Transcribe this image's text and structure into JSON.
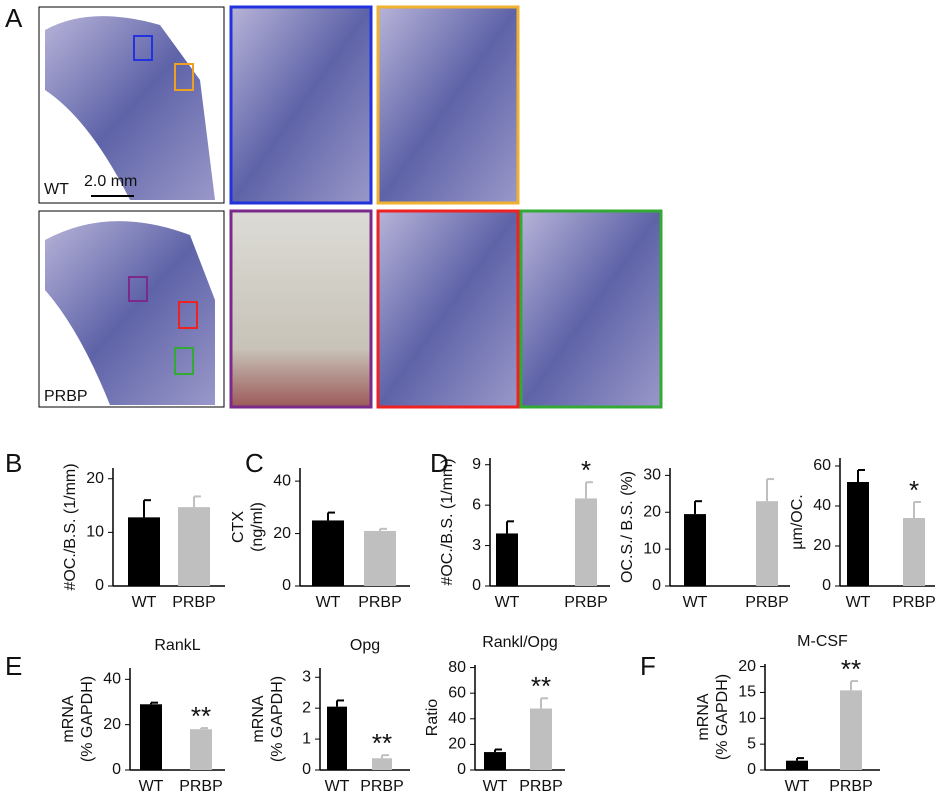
{
  "panel_a": {
    "label": "A",
    "wt_label": "WT",
    "scale_bar": "2.0 mm",
    "prbp_label": "PRBP"
  },
  "chart_data": [
    {
      "type": "bar",
      "panel": "B",
      "ylabel": "#OC./B.S. (1/mm)",
      "categories": [
        "WT",
        "PRBP"
      ],
      "values": [
        12.8,
        14.7
      ],
      "errors": [
        3.2,
        2.0
      ],
      "colors": [
        "#000000",
        "#bfbfbf"
      ],
      "ylim": [
        0,
        22
      ],
      "yticks": [
        0,
        10,
        20
      ]
    },
    {
      "type": "bar",
      "panel": "C",
      "ylabel": [
        "CTX",
        "(ng/ml)"
      ],
      "categories": [
        "WT",
        "PRBP"
      ],
      "values": [
        25,
        21
      ],
      "errors": [
        3,
        0.8
      ],
      "colors": [
        "#000000",
        "#bfbfbf"
      ],
      "ylim": [
        0,
        45
      ],
      "yticks": [
        0,
        20,
        40
      ]
    },
    {
      "type": "bar",
      "panel": "D",
      "ylabel": "#OC./B.S. (1/mm)",
      "categories": [
        "WT",
        "PRBP"
      ],
      "values": [
        3.9,
        6.5
      ],
      "errors": [
        0.9,
        1.2
      ],
      "colors": [
        "#000000",
        "#bfbfbf"
      ],
      "ylim": [
        0,
        9.5
      ],
      "yticks": [
        0,
        3,
        6,
        9
      ],
      "annotations": [
        {
          "index": 1,
          "text": "*"
        }
      ]
    },
    {
      "type": "bar",
      "ylabel": "OC.S./ B.S. (%)",
      "categories": [
        "WT",
        "PRBP"
      ],
      "values": [
        19.5,
        23
      ],
      "errors": [
        3.5,
        6
      ],
      "colors": [
        "#000000",
        "#bfbfbf"
      ],
      "ylim": [
        0,
        32
      ],
      "yticks": [
        0,
        10,
        20,
        30
      ]
    },
    {
      "type": "bar",
      "ylabel": "µm/OC.",
      "categories": [
        "WT",
        "PRBP"
      ],
      "values": [
        52,
        34
      ],
      "errors": [
        6,
        8
      ],
      "colors": [
        "#000000",
        "#bfbfbf"
      ],
      "ylim": [
        0,
        64
      ],
      "yticks": [
        0,
        20,
        40,
        60
      ],
      "annotations": [
        {
          "index": 1,
          "text": "*"
        }
      ]
    },
    {
      "type": "bar",
      "panel": "E",
      "title": "RankL",
      "ylabel": [
        "mRNA",
        "(% GAPDH)"
      ],
      "categories": [
        "WT",
        "PRBP"
      ],
      "values": [
        29,
        18
      ],
      "errors": [
        0.7,
        0.5
      ],
      "colors": [
        "#000000",
        "#bfbfbf"
      ],
      "ylim": [
        0,
        45
      ],
      "yticks": [
        0,
        20,
        40
      ],
      "annotations": [
        {
          "index": 1,
          "text": "**"
        }
      ]
    },
    {
      "type": "bar",
      "title": "Opg",
      "ylabel": [
        "mRNA",
        "(% GAPDH)"
      ],
      "categories": [
        "WT",
        "PRBP"
      ],
      "values": [
        2.05,
        0.38
      ],
      "errors": [
        0.2,
        0.1
      ],
      "colors": [
        "#000000",
        "#bfbfbf"
      ],
      "ylim": [
        0,
        3.3
      ],
      "yticks": [
        0,
        1,
        2,
        3
      ],
      "annotations": [
        {
          "index": 1,
          "text": "**"
        }
      ]
    },
    {
      "type": "bar",
      "title": "Rankl/Opg",
      "ylabel": "Ratio",
      "categories": [
        "WT",
        "PRBP"
      ],
      "values": [
        14,
        48
      ],
      "errors": [
        2,
        8
      ],
      "colors": [
        "#000000",
        "#bfbfbf"
      ],
      "ylim": [
        0,
        82
      ],
      "yticks": [
        0,
        20,
        40,
        60,
        80
      ],
      "annotations": [
        {
          "index": 1,
          "text": "**"
        }
      ]
    },
    {
      "type": "bar",
      "panel": "F",
      "title": "M-CSF",
      "ylabel": [
        "mRNA",
        "(% GAPDH)"
      ],
      "categories": [
        "WT",
        "PRBP"
      ],
      "values": [
        1.8,
        15.4
      ],
      "errors": [
        0.5,
        1.8
      ],
      "colors": [
        "#000000",
        "#bfbfbf"
      ],
      "ylim": [
        0,
        20.5
      ],
      "yticks": [
        0,
        5,
        10,
        15,
        20
      ],
      "annotations": [
        {
          "index": 1,
          "text": "**"
        }
      ]
    }
  ]
}
